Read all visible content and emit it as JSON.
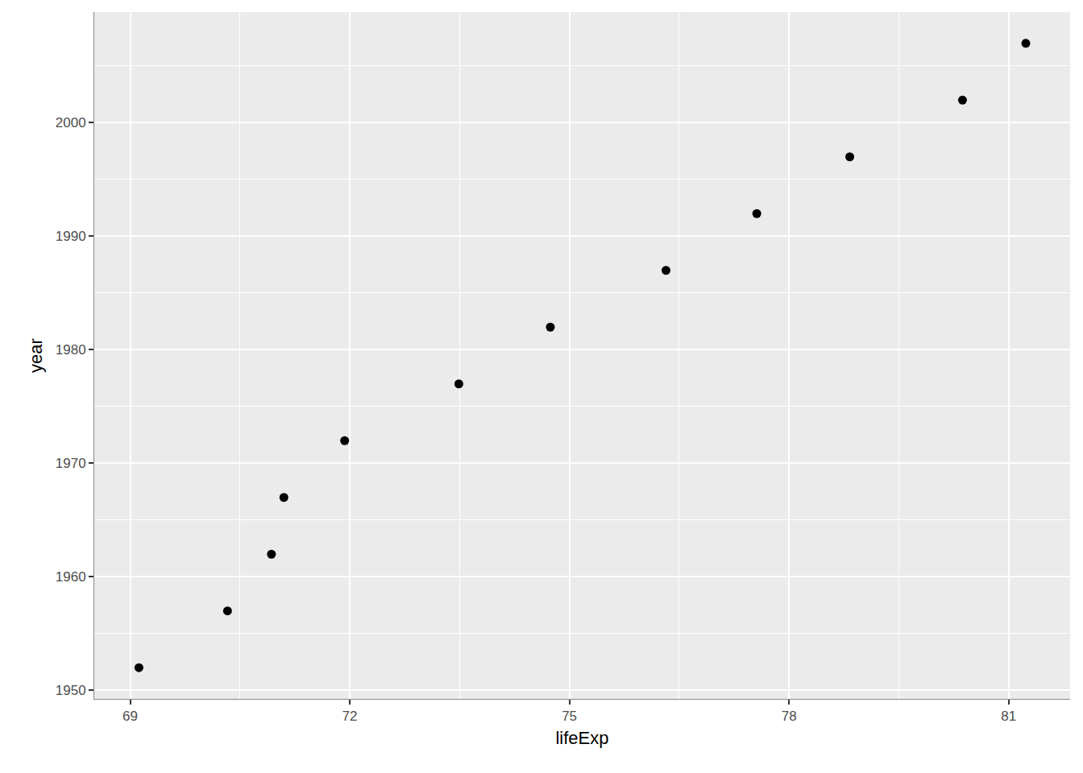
{
  "chart_data": {
    "type": "scatter",
    "xlabel": "lifeExp",
    "ylabel": "year",
    "x": [
      69.12,
      70.33,
      70.93,
      71.1,
      71.93,
      73.49,
      74.74,
      76.32,
      77.56,
      78.83,
      80.37,
      81.235
    ],
    "values": [
      1952,
      1957,
      1962,
      1967,
      1972,
      1977,
      1982,
      1987,
      1992,
      1997,
      2002,
      2007
    ],
    "color": "#000000",
    "marker": "circle",
    "xlim": [
      68.51,
      81.84
    ],
    "xticks": [
      69,
      72,
      75,
      78,
      81
    ],
    "ylim": [
      1949.25,
      2009.75
    ],
    "yticks": [
      1950,
      1960,
      1970,
      1980,
      1990,
      2000
    ],
    "grid": true
  }
}
